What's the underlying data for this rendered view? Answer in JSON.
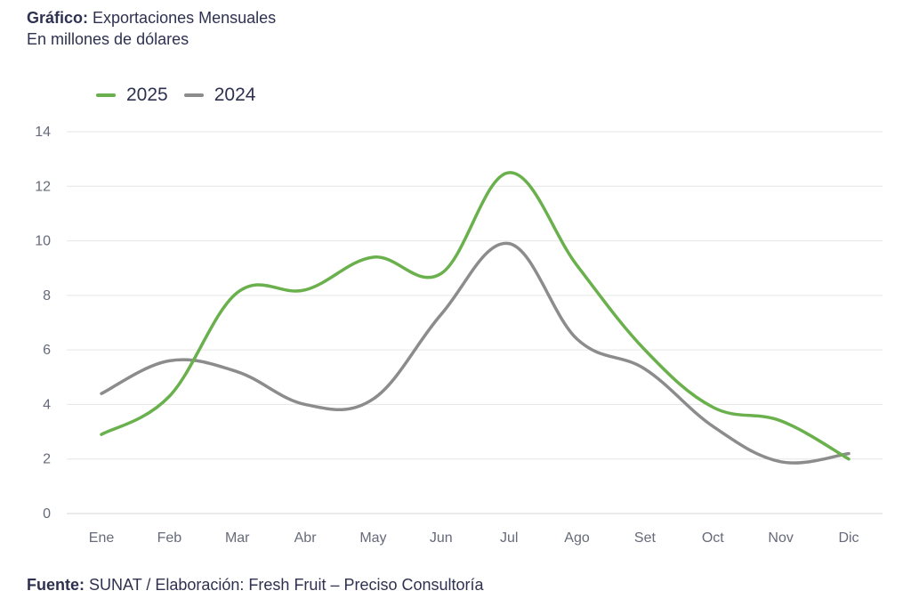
{
  "header": {
    "prefix": "Gráfico:",
    "title": "Exportaciones Mensuales",
    "subtitle": "En millones de dólares"
  },
  "footer": {
    "prefix": "Fuente:",
    "text": "SUNAT / Elaboración: Fresh Fruit – Preciso Consultoría"
  },
  "chart_data": {
    "type": "line",
    "title": "Exportaciones Mensuales",
    "subtitle": "En millones de dólares",
    "xlabel": "",
    "ylabel": "",
    "categories": [
      "Ene",
      "Feb",
      "Mar",
      "Abr",
      "May",
      "Jun",
      "Jul",
      "Ago",
      "Set",
      "Oct",
      "Nov",
      "Dic"
    ],
    "ylim": [
      0,
      14
    ],
    "yticks": [
      0,
      2,
      4,
      6,
      8,
      10,
      12,
      14
    ],
    "grid": true,
    "legend_position": "top-left",
    "series": [
      {
        "name": "2025",
        "color": "#6ab04c",
        "values": [
          2.9,
          4.3,
          8.1,
          8.2,
          9.4,
          8.8,
          12.5,
          9.1,
          6.0,
          3.9,
          3.4,
          2.0
        ]
      },
      {
        "name": "2024",
        "color": "#8c8c8c",
        "values": [
          4.4,
          5.6,
          5.2,
          4.0,
          4.2,
          7.3,
          9.9,
          6.4,
          5.3,
          3.2,
          1.9,
          2.2
        ]
      }
    ]
  }
}
